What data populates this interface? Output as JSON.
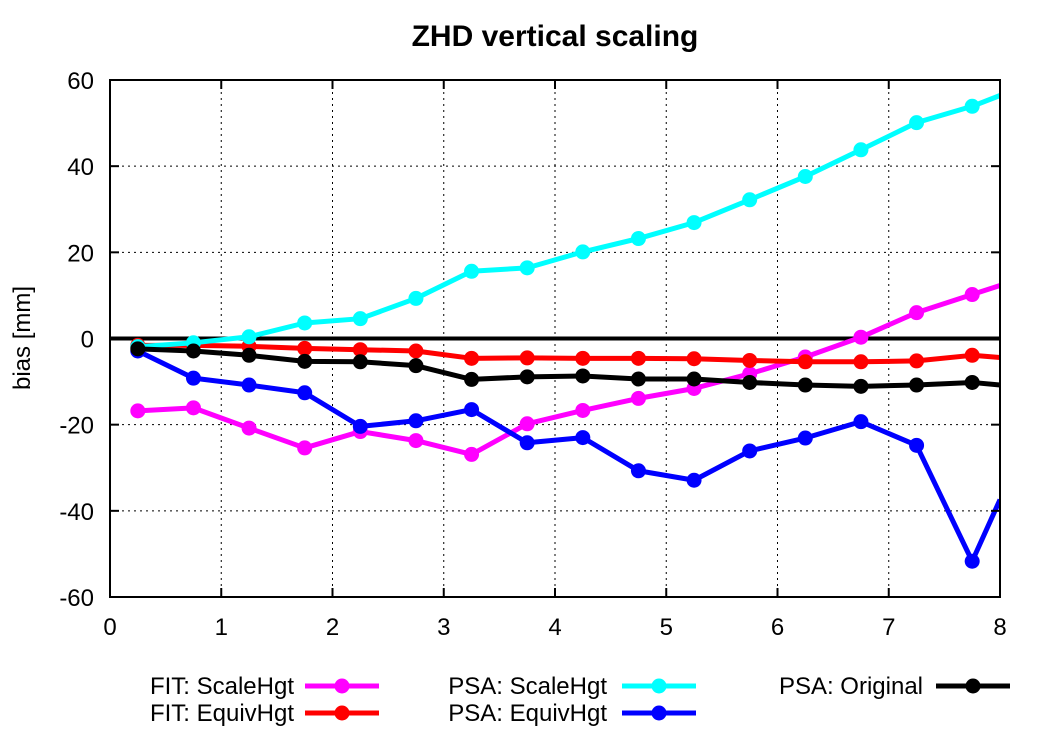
{
  "chart_data": {
    "type": "line",
    "title": "ZHD vertical scaling",
    "xlabel": "",
    "ylabel": "bias [mm]",
    "xlim": [
      0,
      8
    ],
    "ylim": [
      -60,
      60
    ],
    "x_ticks": [
      "0",
      "1",
      "2",
      "3",
      "4",
      "5",
      "6",
      "7",
      "8"
    ],
    "y_ticks": [
      "-60",
      "-40",
      "-20",
      "0",
      "20",
      "40",
      "60"
    ],
    "grid": true,
    "legend_position": "bottom",
    "reference_line_y": 0,
    "x": [
      0.25,
      0.75,
      1.25,
      1.75,
      2.25,
      2.75,
      3.25,
      3.75,
      4.25,
      4.75,
      5.25,
      5.75,
      6.25,
      6.75,
      7.25,
      7.75,
      8.0
    ],
    "series": [
      {
        "name": "FIT: ScaleHgt",
        "color": "#ff00ff",
        "values": [
          -16.8,
          -16.1,
          -20.8,
          -25.4,
          -21.6,
          -23.7,
          -26.9,
          -19.8,
          -16.7,
          -13.9,
          -11.6,
          -8.2,
          -4.3,
          0.3,
          6.0,
          10.2,
          12.3
        ]
      },
      {
        "name": "FIT: EquivHgt",
        "color": "#ff0000",
        "values": [
          -1.6,
          -1.6,
          -1.8,
          -2.3,
          -2.6,
          -2.9,
          -4.6,
          -4.5,
          -4.6,
          -4.6,
          -4.7,
          -5.1,
          -5.4,
          -5.4,
          -5.2,
          -3.9,
          -4.4
        ]
      },
      {
        "name": "PSA: ScaleHgt",
        "color": "#00ffff",
        "values": [
          -1.9,
          -1.0,
          0.4,
          3.6,
          4.6,
          9.3,
          15.6,
          16.4,
          20.1,
          23.2,
          26.9,
          32.2,
          37.6,
          43.8,
          50.1,
          53.9,
          56.4
        ]
      },
      {
        "name": "PSA: EquivHgt",
        "color": "#0000ff",
        "values": [
          -2.9,
          -9.2,
          -10.8,
          -12.6,
          -20.4,
          -19.1,
          -16.5,
          -24.2,
          -23.0,
          -30.7,
          -32.9,
          -26.1,
          -23.1,
          -19.3,
          -24.8,
          -51.7,
          -37.4
        ]
      },
      {
        "name": "PSA: Original",
        "color": "#000000",
        "values": [
          -2.4,
          -2.9,
          -3.9,
          -5.3,
          -5.4,
          -6.3,
          -9.5,
          -8.9,
          -8.7,
          -9.4,
          -9.4,
          -10.2,
          -10.8,
          -11.1,
          -10.8,
          -10.2,
          -10.8
        ]
      }
    ]
  }
}
